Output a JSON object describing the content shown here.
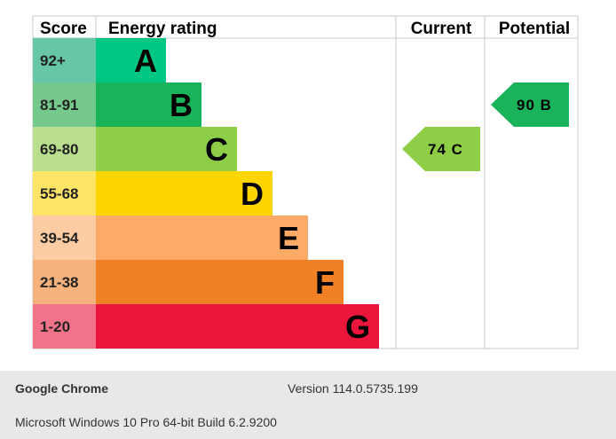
{
  "chart_data": {
    "type": "bar",
    "headers": {
      "score": "Score",
      "rating": "Energy rating",
      "current": "Current",
      "potential": "Potential"
    },
    "bands": [
      {
        "letter": "A",
        "range": "92+",
        "color": "#00c781",
        "score_color": "#67c5a8"
      },
      {
        "letter": "B",
        "range": "81-91",
        "color": "#1bb35a",
        "score_color": "#76c98c"
      },
      {
        "letter": "C",
        "range": "69-80",
        "color": "#8dce46",
        "score_color": "#b9de8d"
      },
      {
        "letter": "D",
        "range": "55-68",
        "color": "#ffd500",
        "score_color": "#ffe566"
      },
      {
        "letter": "E",
        "range": "39-54",
        "color": "#fcaa65",
        "score_color": "#fdcca3"
      },
      {
        "letter": "F",
        "range": "21-38",
        "color": "#ef8023",
        "score_color": "#f5b27c"
      },
      {
        "letter": "G",
        "range": "1-20",
        "color": "#e9153b",
        "score_color": "#f07389"
      }
    ],
    "current": {
      "value": 74,
      "band": "C",
      "label": "74 C",
      "color": "#8dce46"
    },
    "potential": {
      "value": 90,
      "band": "B",
      "label": "90 B",
      "color": "#1bb35a"
    }
  },
  "footer": {
    "browser": "Google Chrome",
    "version": "Version 114.0.5735.199",
    "os": "Microsoft Windows 10 Pro 64-bit Build 6.2.9200"
  }
}
